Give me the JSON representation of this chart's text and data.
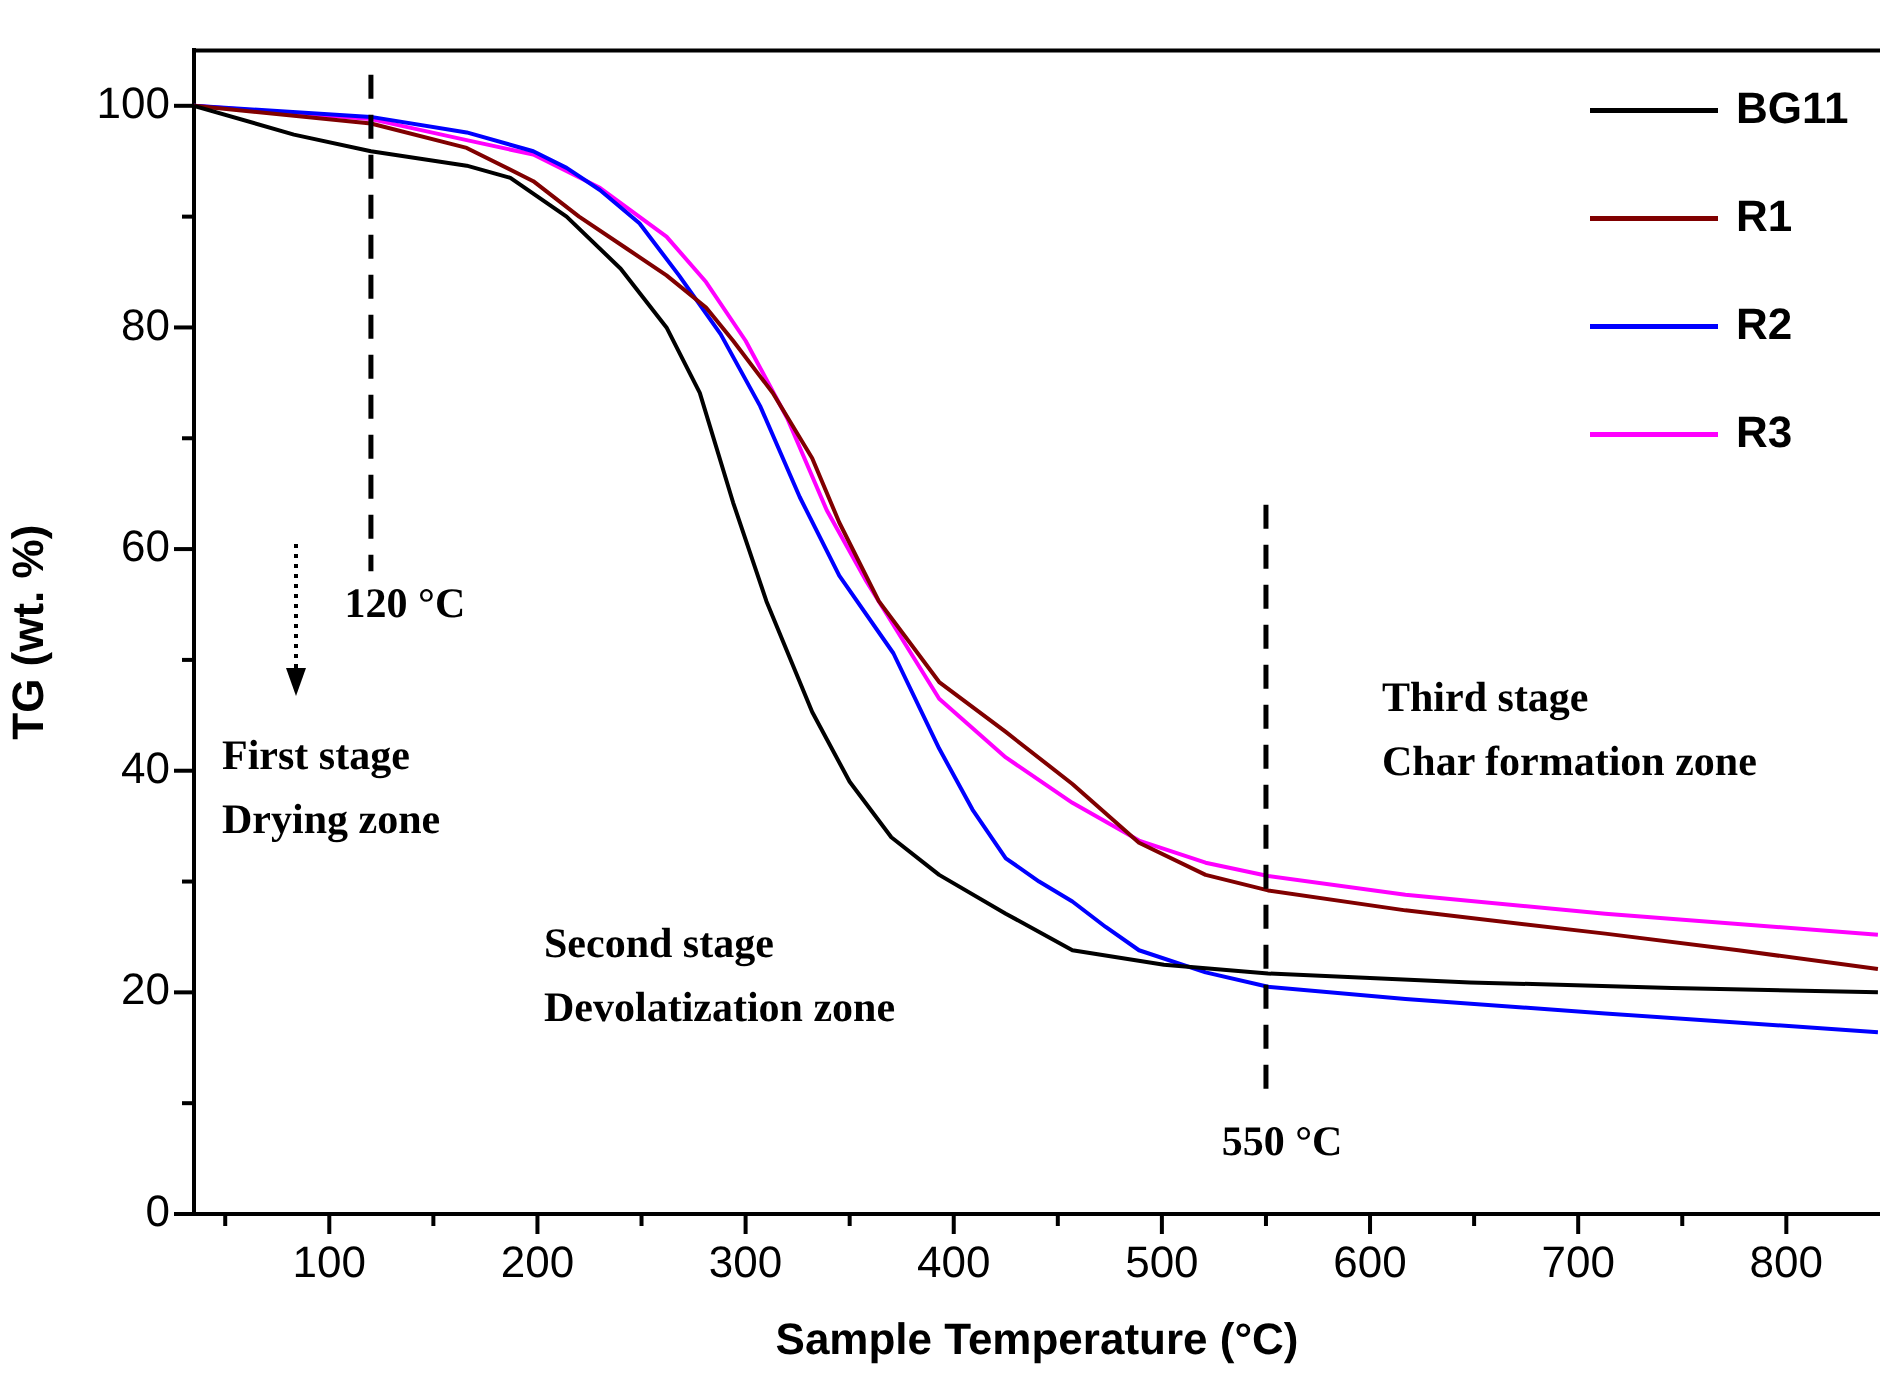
{
  "chart_data": {
    "type": "line",
    "xlabel": "Sample Temperature (°C)",
    "ylabel": "TG (wt. %)",
    "xlim": [
      35,
      845
    ],
    "ylim": [
      0,
      105
    ],
    "xticks": [
      {
        "value": 50,
        "label": null
      },
      100,
      {
        "value": 150,
        "label": null
      },
      200,
      {
        "value": 250,
        "label": null
      },
      300,
      {
        "value": 350,
        "label": null
      },
      400,
      {
        "value": 450,
        "label": null
      },
      500,
      {
        "value": 550,
        "label": null
      },
      600,
      {
        "value": 650,
        "label": null
      },
      700,
      {
        "value": 750,
        "label": null
      },
      800
    ],
    "yticks": [
      0,
      {
        "value": 10,
        "label": null
      },
      20,
      {
        "value": 30,
        "label": null
      },
      40,
      {
        "value": 50,
        "label": null
      },
      60,
      {
        "value": 70,
        "label": null
      },
      80,
      {
        "value": 90,
        "label": null
      },
      100
    ],
    "grid": false,
    "legend": "top right",
    "marker": "none",
    "line_style": "solid",
    "series": [
      {
        "name": "BG11",
        "color": "#000000",
        "x": [
          35,
          83,
          120,
          166,
          187,
          214,
          240,
          262,
          278,
          294,
          310,
          332,
          350,
          370,
          393,
          425,
          457,
          501,
          551,
          648,
          745,
          844
        ],
        "values": [
          100,
          97.4,
          95.9,
          94.6,
          93.5,
          90.0,
          85.3,
          80.0,
          74.1,
          64.2,
          55.3,
          45.3,
          39,
          34,
          30.6,
          27.1,
          23.8,
          22.5,
          21.7,
          20.9,
          20.4,
          20.0
        ]
      },
      {
        "name": "R1",
        "color": "#800000",
        "x": [
          35,
          120,
          166,
          198,
          220,
          243,
          262,
          281,
          294,
          313,
          332,
          345,
          364,
          393,
          425,
          457,
          489,
          521,
          551,
          617,
          713,
          777,
          844
        ],
        "values": [
          100,
          98.4,
          96.2,
          93.2,
          90.0,
          87.1,
          84.7,
          81.8,
          78.8,
          74.1,
          68.2,
          62.4,
          55.3,
          48,
          43.5,
          38.8,
          33.5,
          30.6,
          29.2,
          27.4,
          25.3,
          23.8,
          22.1
        ]
      },
      {
        "name": "R2",
        "color": "#0000ff",
        "x": [
          35,
          120,
          166,
          198,
          214,
          230,
          249,
          268,
          288,
          307,
          326,
          345,
          371,
          393,
          409,
          425,
          441,
          457,
          473,
          489,
          521,
          551,
          617,
          713,
          844
        ],
        "values": [
          100,
          99.0,
          97.6,
          95.9,
          94.4,
          92.4,
          89.4,
          84.7,
          79.4,
          72.9,
          64.7,
          57.6,
          50.6,
          42,
          36.5,
          32.1,
          30.0,
          28.2,
          25.9,
          23.8,
          21.8,
          20.5,
          19.4,
          18.1,
          16.4
        ]
      },
      {
        "name": "R3",
        "color": "#ff00ff",
        "x": [
          35,
          120,
          166,
          198,
          230,
          262,
          281,
          300,
          320,
          339,
          358,
          393,
          425,
          457,
          489,
          521,
          551,
          617,
          713,
          844
        ],
        "values": [
          100,
          98.8,
          96.9,
          95.6,
          92.6,
          88.2,
          84.1,
          78.8,
          71.8,
          63.5,
          57.1,
          46.5,
          41.2,
          37.1,
          33.7,
          31.7,
          30.5,
          28.8,
          27.1,
          25.2
        ]
      }
    ],
    "ref_lines": [
      {
        "axis": "x",
        "value": 120,
        "label": "120 °C",
        "line_style": "dashed",
        "color": "#000000"
      },
      {
        "axis": "x",
        "value": 550,
        "label": "550 °C",
        "line_style": "dashed",
        "color": "#000000"
      }
    ],
    "annotations": [
      "First stage\nDrying zone",
      "Second stage\nDevolatization zone",
      "Third stage\nChar formation zone"
    ]
  }
}
